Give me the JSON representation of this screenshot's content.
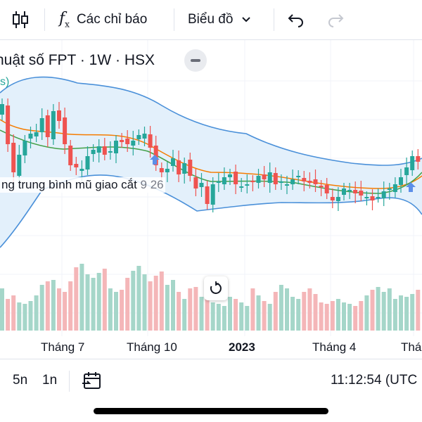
{
  "toolbar": {
    "indicators_label": "Các chỉ báo",
    "chart_type_label": "Biểu đồ",
    "icons": [
      "candles-icon",
      "fx-icon",
      "chevron-down-icon",
      "undo-icon",
      "redo-icon"
    ]
  },
  "chart": {
    "title": "huật số FPT · 1W · HSX",
    "indicator_paren": "s)",
    "indicator_label": "ng trung bình mũ giao cắt",
    "indicator_values": "9  26",
    "colors": {
      "up": "#26a69a",
      "down": "#ef5350",
      "up_volume": "#a5d6c9",
      "down_volume": "#f4b6b8",
      "bb_band": "#4a90d9",
      "bb_fill": "#e3f0fb",
      "ema_fast": "#f57c00",
      "ema_slow": "#43a047",
      "marker": "#5c8fe8"
    }
  },
  "xaxis": {
    "labels": [
      "Tháng 7",
      "Tháng 10",
      "2023",
      "Tháng 4",
      "Thá"
    ]
  },
  "bottom_bar": {
    "ranges": [
      "5n",
      "1n"
    ],
    "time": "11:12:54 (UTC"
  }
}
